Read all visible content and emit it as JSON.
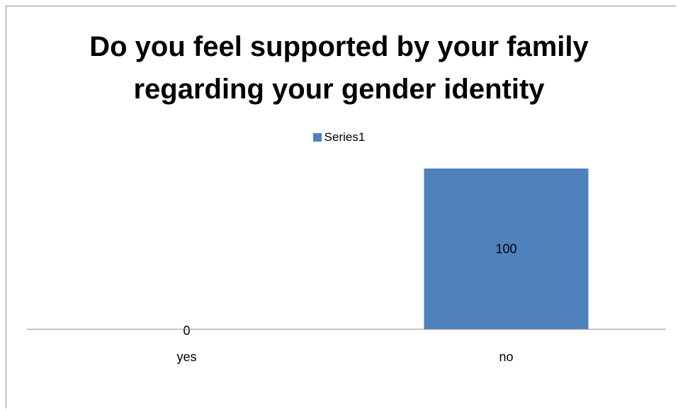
{
  "chart_data": {
    "type": "bar",
    "title_lines": [
      "Do you feel supported by your family",
      "regarding your gender identity"
    ],
    "categories": [
      "yes",
      "no"
    ],
    "series": [
      {
        "name": "Series1",
        "values": [
          0,
          100
        ],
        "color": "#4f81bd"
      }
    ],
    "data_labels": [
      "0",
      "100"
    ],
    "legend_position": "top",
    "grid": false,
    "ylim": [
      0,
      100
    ]
  }
}
